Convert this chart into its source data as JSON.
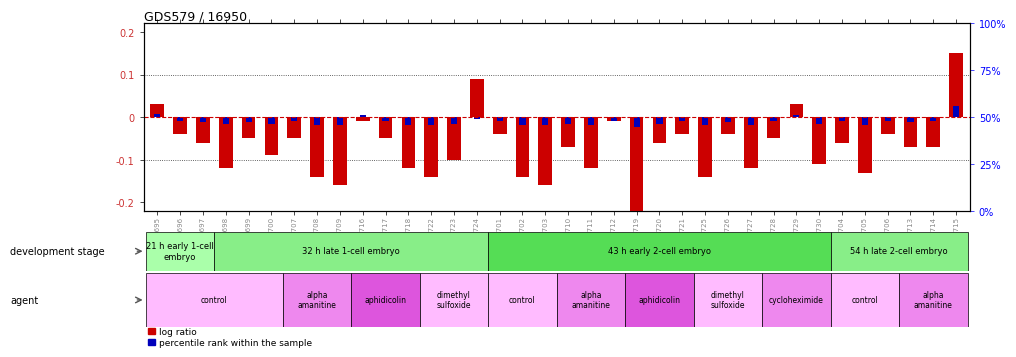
{
  "title": "GDS579 / 16950",
  "samples": [
    "GSM14695",
    "GSM14696",
    "GSM14697",
    "GSM14698",
    "GSM14699",
    "GSM14700",
    "GSM14707",
    "GSM14708",
    "GSM14709",
    "GSM14716",
    "GSM14717",
    "GSM14718",
    "GSM14722",
    "GSM14723",
    "GSM14724",
    "GSM14701",
    "GSM14702",
    "GSM14703",
    "GSM14710",
    "GSM14711",
    "GSM14712",
    "GSM14719",
    "GSM14720",
    "GSM14721",
    "GSM14725",
    "GSM14726",
    "GSM14727",
    "GSM14728",
    "GSM14729",
    "GSM14730",
    "GSM14704",
    "GSM14705",
    "GSM14706",
    "GSM14713",
    "GSM14714",
    "GSM14715"
  ],
  "log_ratio": [
    0.03,
    -0.04,
    -0.06,
    -0.12,
    -0.05,
    -0.09,
    -0.05,
    -0.14,
    -0.16,
    -0.01,
    -0.05,
    -0.12,
    -0.14,
    -0.1,
    0.09,
    -0.04,
    -0.14,
    -0.16,
    -0.07,
    -0.12,
    -0.01,
    -0.22,
    -0.06,
    -0.04,
    -0.14,
    -0.04,
    -0.12,
    -0.05,
    0.03,
    -0.11,
    -0.06,
    -0.13,
    -0.04,
    -0.07,
    -0.07,
    0.15
  ],
  "percentile_offset": [
    0.008,
    -0.008,
    -0.012,
    -0.015,
    -0.012,
    -0.015,
    -0.01,
    -0.018,
    -0.018,
    0.005,
    -0.01,
    -0.018,
    -0.018,
    -0.015,
    -0.005,
    -0.008,
    -0.018,
    -0.018,
    -0.015,
    -0.018,
    -0.008,
    -0.022,
    -0.015,
    -0.01,
    -0.018,
    -0.012,
    -0.018,
    -0.008,
    0.005,
    -0.015,
    -0.008,
    -0.018,
    -0.01,
    -0.012,
    -0.01,
    0.025
  ],
  "dev_stage_groups": [
    {
      "label": "21 h early 1-cell\nembryo",
      "start": 0,
      "end": 3,
      "color": "#aaffaa"
    },
    {
      "label": "32 h late 1-cell embryo",
      "start": 3,
      "end": 15,
      "color": "#88ee88"
    },
    {
      "label": "43 h early 2-cell embryo",
      "start": 15,
      "end": 30,
      "color": "#55dd55"
    },
    {
      "label": "54 h late 2-cell embryo",
      "start": 30,
      "end": 36,
      "color": "#88ee88"
    }
  ],
  "agent_groups": [
    {
      "label": "control",
      "start": 0,
      "end": 6,
      "color": "#ffbbff"
    },
    {
      "label": "alpha\namanitine",
      "start": 6,
      "end": 9,
      "color": "#ee88ee"
    },
    {
      "label": "aphidicolin",
      "start": 9,
      "end": 12,
      "color": "#dd55dd"
    },
    {
      "label": "dimethyl\nsulfoxide",
      "start": 12,
      "end": 15,
      "color": "#ffbbff"
    },
    {
      "label": "control",
      "start": 15,
      "end": 18,
      "color": "#ffbbff"
    },
    {
      "label": "alpha\namanitine",
      "start": 18,
      "end": 21,
      "color": "#ee88ee"
    },
    {
      "label": "aphidicolin",
      "start": 21,
      "end": 24,
      "color": "#dd55dd"
    },
    {
      "label": "dimethyl\nsulfoxide",
      "start": 24,
      "end": 27,
      "color": "#ffbbff"
    },
    {
      "label": "cycloheximide",
      "start": 27,
      "end": 30,
      "color": "#ee88ee"
    },
    {
      "label": "control",
      "start": 30,
      "end": 33,
      "color": "#ffbbff"
    },
    {
      "label": "alpha\namanitine",
      "start": 33,
      "end": 36,
      "color": "#ee88ee"
    }
  ],
  "ylim": [
    -0.22,
    0.22
  ],
  "yticks_left": [
    -0.2,
    -0.1,
    0.0,
    0.1,
    0.2
  ],
  "yticks_right": [
    0,
    25,
    50,
    75,
    100
  ],
  "bar_color": "#cc0000",
  "pct_color": "#0000bb",
  "zero_line_color": "#cc0000",
  "dot_grid_color": "#333333",
  "bg_color": "#ffffff",
  "tick_label_color": "#888888",
  "yaxis_label_color": "#cc3333"
}
